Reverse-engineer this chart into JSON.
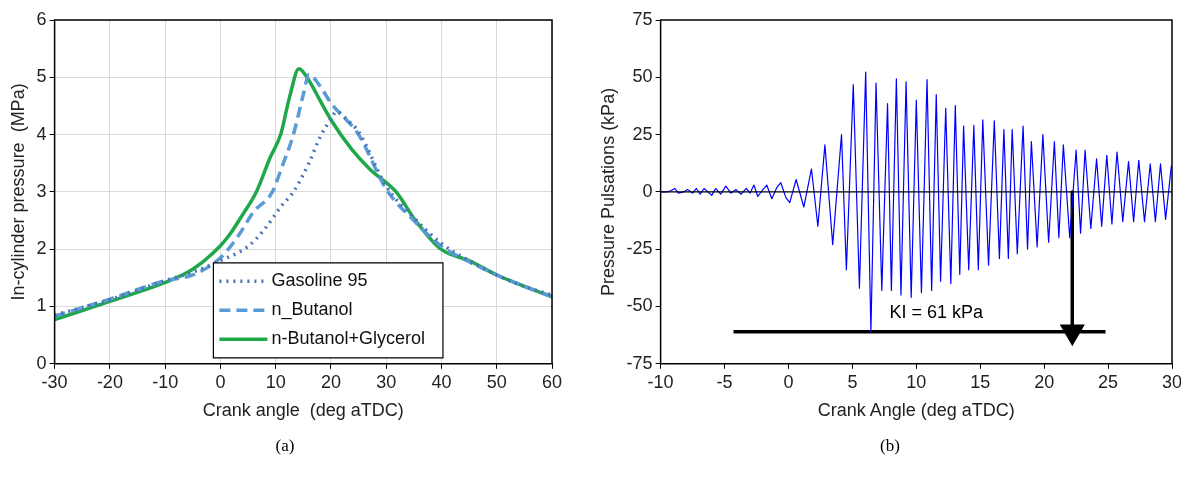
{
  "chart_data": [
    {
      "type": "line",
      "xlabel": "Crank angle  (deg aTDC)",
      "ylabel": "In-cylinder pressure  (MPa)",
      "xlim": [
        -30,
        60
      ],
      "xticks": [
        -30,
        -20,
        -10,
        0,
        10,
        20,
        30,
        40,
        50,
        60
      ],
      "ylim": [
        0,
        6
      ],
      "yticks": [
        0,
        1,
        2,
        3,
        4,
        5,
        6
      ],
      "grid": true,
      "legend": "bottom",
      "annotations": [
        "(a)"
      ],
      "series": [
        {
          "name": "Gasoline 95",
          "color": "#4a72b8",
          "line_style": "dotted",
          "x": [
            -30,
            -20,
            -10,
            -5,
            0,
            5,
            8,
            11,
            13.2,
            16,
            18,
            20,
            21,
            23,
            25,
            30,
            35,
            40,
            45,
            50,
            55,
            60
          ],
          "values": [
            0.85,
            1.12,
            1.45,
            1.6,
            1.8,
            2.05,
            2.35,
            2.75,
            3.0,
            3.5,
            3.95,
            4.27,
            4.4,
            4.25,
            4.05,
            3.1,
            2.55,
            2.1,
            1.8,
            1.55,
            1.35,
            1.2
          ]
        },
        {
          "name": "n_Butanol",
          "color": "#5b9bd5",
          "line_style": "dashed",
          "x": [
            -30,
            -20,
            -10,
            -5,
            0,
            3,
            6,
            9.4,
            11,
            13.2,
            15,
            16,
            18,
            20,
            25,
            30,
            35,
            40,
            45,
            50,
            55,
            60
          ],
          "values": [
            0.83,
            1.13,
            1.45,
            1.55,
            1.85,
            2.2,
            2.65,
            3.0,
            3.4,
            4.0,
            4.7,
            5.05,
            4.85,
            4.55,
            4.0,
            3.05,
            2.5,
            2.05,
            1.78,
            1.55,
            1.35,
            1.17
          ]
        },
        {
          "name": "n-Butanol+Glycerol",
          "color": "#1fa84a",
          "line_style": "solid",
          "x": [
            -30,
            -20,
            -10,
            -5,
            0,
            2,
            4,
            6.5,
            9,
            10.9,
            12.5,
            14.2,
            16,
            18,
            20,
            23.7,
            27,
            31.8,
            35.3,
            39.9,
            45,
            50,
            55,
            60
          ],
          "values": [
            0.77,
            1.09,
            1.42,
            1.65,
            2.06,
            2.3,
            2.6,
            3.0,
            3.6,
            4.0,
            4.65,
            5.15,
            4.95,
            4.6,
            4.26,
            3.75,
            3.4,
            3.0,
            2.5,
            2.0,
            1.8,
            1.55,
            1.35,
            1.17
          ]
        }
      ]
    },
    {
      "type": "line",
      "xlabel": "Crank Angle (deg aTDC)",
      "ylabel": "Pressure Pulsations (kPa)",
      "xlim": [
        -10,
        30
      ],
      "xticks": [
        -10,
        -5,
        0,
        5,
        10,
        15,
        20,
        25,
        30
      ],
      "ylim": [
        -75,
        75
      ],
      "yticks": [
        -75,
        -50,
        -25,
        0,
        25,
        50,
        75
      ],
      "grid": false,
      "legend": false,
      "annotations": [
        "(b)"
      ],
      "ref_lines": [
        {
          "axis": "y",
          "value": 0,
          "color": "#000000"
        }
      ],
      "series": [
        {
          "color": "#0000ff",
          "line_style": "solid",
          "x": [
            -10,
            -9.5,
            -9.2,
            -8.9,
            -8.6,
            -8.2,
            -7.9,
            -7.5,
            -7.2,
            -6.9,
            -6.6,
            -6.3,
            -6.0,
            -5.7,
            -5.3,
            -4.9,
            -4.5,
            -4.1,
            -3.7,
            -3.3,
            -3.0,
            -2.7,
            -2.4,
            -2.0,
            -1.7,
            -1.3,
            -0.9,
            -0.6,
            -0.2,
            0.1,
            0.6,
            1.2,
            1.8,
            2.3,
            2.85,
            3.46,
            4.15,
            4.53,
            5.07,
            5.55,
            6.04,
            6.45,
            6.85,
            7.3,
            7.75,
            8.05,
            8.44,
            8.8,
            9.2,
            9.6,
            10.0,
            10.4,
            10.84,
            11.2,
            11.56,
            11.9,
            12.3,
            12.7,
            13.05,
            13.4,
            13.7,
            14.1,
            14.5,
            14.85,
            15.2,
            15.65,
            16.1,
            16.5,
            16.85,
            17.2,
            17.5,
            17.9,
            18.35,
            18.7,
            19.0,
            19.45,
            19.9,
            20.35,
            20.8,
            21.15,
            21.5,
            22.0,
            22.5,
            22.85,
            23.2,
            23.65,
            24.1,
            24.5,
            24.9,
            25.3,
            25.7,
            26.15,
            26.6,
            27.0,
            27.4,
            27.85,
            28.3,
            28.7,
            29.1,
            29.5,
            29.95
          ],
          "values": [
            0,
            0,
            0.5,
            1.5,
            -0.5,
            0,
            1,
            -0.5,
            1.5,
            -1,
            1.5,
            0,
            -1.5,
            1.5,
            -1,
            2.5,
            -0.5,
            1,
            -1,
            1.5,
            -0.5,
            3,
            -2,
            1,
            3,
            -3,
            2,
            4,
            -2.5,
            -4.7,
            5.4,
            -6.6,
            10,
            -15,
            20.5,
            -23,
            25,
            -34,
            46.8,
            -42,
            52.3,
            -61,
            47.5,
            -43,
            38.5,
            -43,
            49.3,
            -45,
            48,
            -46,
            40,
            -44,
            49,
            -43,
            42.5,
            -39,
            36.5,
            -40,
            37.7,
            -36,
            28.7,
            -34,
            29,
            -34,
            31.4,
            -32,
            31,
            -29,
            27.2,
            -29,
            27.2,
            -27,
            28.7,
            -25,
            22,
            -24,
            25,
            -22,
            22,
            -20,
            20.5,
            -20,
            18.2,
            -18,
            18.2,
            -16,
            14.4,
            -15,
            16,
            -14,
            17.4,
            -13,
            13.2,
            -13,
            13.8,
            -13,
            12.2,
            -13,
            12.2,
            -12,
            11.4
          ]
        },
        {
          "name": "KI = 61 kPa",
          "color": "#000000",
          "line_style": "solid",
          "x": [
            -4.3,
            24.8
          ],
          "values": [
            -61,
            -61
          ]
        },
        {
          "color": "#000000",
          "line_style": "solid",
          "marker": "triangle",
          "x": [
            22.2,
            22.2
          ],
          "values": [
            0,
            -61
          ]
        }
      ]
    }
  ]
}
